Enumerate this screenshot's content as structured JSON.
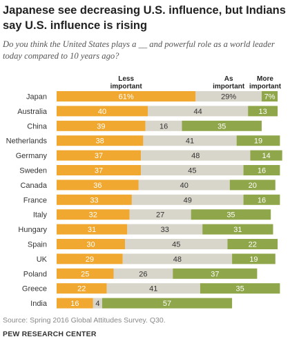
{
  "title": "Japanese see decreasing U.S. influence, but Indians say U.S. influence is rising",
  "subtitle": "Do you think the United States plays a __ and powerful role as a world leader today compared to 10 years ago?",
  "source": "Source: Spring 2016 Global Attitudes Survey. Q30.",
  "org": "PEW RESEARCH CENTER",
  "colors": {
    "less": "#f0a830",
    "same": "#d8d5ca",
    "more": "#8fa64a"
  },
  "chart_data": {
    "type": "bar",
    "stacked": true,
    "orientation": "horizontal",
    "categories": [
      "Japan",
      "Australia",
      "China",
      "Netherlands",
      "Germany",
      "Sweden",
      "Canada",
      "France",
      "Italy",
      "Hungary",
      "Spain",
      "UK",
      "Poland",
      "Greece",
      "India"
    ],
    "series": [
      {
        "name": "Less important",
        "values": [
          61,
          40,
          39,
          38,
          37,
          37,
          36,
          33,
          32,
          31,
          30,
          29,
          25,
          22,
          16
        ],
        "labels": [
          "61%",
          "40",
          "39",
          "38",
          "37",
          "37",
          "36",
          "33",
          "32",
          "31",
          "30",
          "29",
          "25",
          "22",
          "16"
        ]
      },
      {
        "name": "As important",
        "values": [
          29,
          44,
          16,
          41,
          48,
          45,
          40,
          49,
          27,
          33,
          45,
          48,
          26,
          41,
          4
        ],
        "labels": [
          "29%",
          "44",
          "16",
          "41",
          "48",
          "45",
          "40",
          "49",
          "27",
          "33",
          "45",
          "48",
          "26",
          "41",
          "4"
        ]
      },
      {
        "name": "More important",
        "values": [
          7,
          13,
          35,
          19,
          14,
          16,
          20,
          16,
          35,
          31,
          22,
          19,
          37,
          35,
          57
        ],
        "labels": [
          "7%",
          "13",
          "35",
          "19",
          "14",
          "16",
          "20",
          "16",
          "35",
          "31",
          "22",
          "19",
          "37",
          "35",
          "57"
        ]
      }
    ],
    "legend_headers": [
      "Less\nimportant",
      "As\nimportant",
      "More\nimportant"
    ]
  }
}
